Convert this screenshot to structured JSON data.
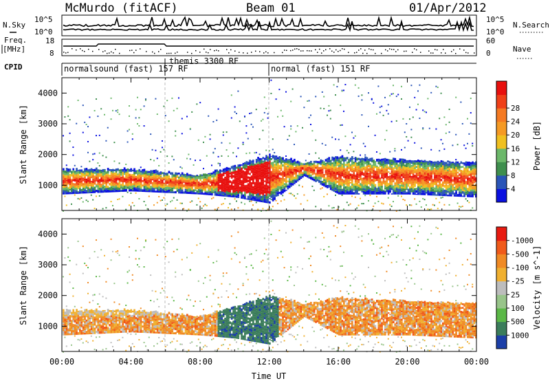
{
  "header": {
    "station": "McMurdo (fitACF)",
    "beam": "Beam 01",
    "date": "01/Apr/2012"
  },
  "noise_panel": {
    "left_label": "N.Sky",
    "right_label": "N.Search",
    "left_ticks": [
      "10^5",
      "10^0"
    ],
    "right_ticks": [
      "10^5",
      "10^0"
    ]
  },
  "freq_panel": {
    "left_label_1": "Freq.",
    "left_label_2": "[MHz]",
    "left_ticks": [
      "18",
      "8"
    ],
    "right_label": "Nave",
    "right_ticks": [
      "60",
      "0"
    ]
  },
  "cpid": {
    "label": "CPID",
    "modes": [
      {
        "name": "normalsound (fast) 157 RF",
        "start_hour": 0
      },
      {
        "name": "themis 3300 RF",
        "start_hour": 6
      },
      {
        "name": "normal (fast) 151 RF",
        "start_hour": 12
      }
    ]
  },
  "time_axis": {
    "label": "Time UT",
    "ticks": [
      "00:00",
      "04:00",
      "08:00",
      "12:00",
      "16:00",
      "20:00",
      "00:00"
    ]
  },
  "range_axis": {
    "label": "Slant Range [km]",
    "ticks": [
      "1000",
      "2000",
      "3000",
      "4000"
    ]
  },
  "power_scale": {
    "label": "Power [dB]",
    "ticks": [
      "4",
      "8",
      "12",
      "16",
      "20",
      "24",
      "28"
    ],
    "colors": [
      "#0a10e0",
      "#2a55b8",
      "#3f8f4e",
      "#6cb86a",
      "#f0c020",
      "#f59a24",
      "#f57a22",
      "#f04018",
      "#e8100e"
    ]
  },
  "velocity_scale": {
    "label": "Velocity [m s^-1]",
    "ticks": [
      "1000",
      "500",
      "100",
      "25",
      "-25",
      "-100",
      "-500",
      "-1000"
    ],
    "colors": [
      "#1c3fa8",
      "#3b7d5b",
      "#5bb847",
      "#98c48a",
      "#bdbdbd",
      "#f0b030",
      "#f08a24",
      "#f05a1a",
      "#e81a10"
    ]
  },
  "chart_data": [
    {
      "type": "heatmap",
      "title": "Power",
      "xlabel": "Time UT",
      "ylabel": "Slant Range [km]",
      "xlim": [
        0,
        24
      ],
      "ylim": [
        180,
        4500
      ],
      "colorbar": {
        "label": "Power [dB]",
        "range": [
          0,
          32
        ]
      },
      "description_series": [
        {
          "name": "echo band lower edge",
          "x": [
            0,
            4,
            8,
            10,
            12,
            14,
            16,
            20,
            24
          ],
          "y": [
            700,
            800,
            700,
            600,
            400,
            1300,
            700,
            700,
            600
          ]
        },
        {
          "name": "echo band upper edge",
          "x": [
            0,
            4,
            8,
            10,
            12,
            14,
            16,
            20,
            24
          ],
          "y": [
            1500,
            1500,
            1300,
            1600,
            2000,
            1700,
            1900,
            1800,
            1700
          ]
        }
      ]
    },
    {
      "type": "heatmap",
      "title": "Velocity",
      "xlabel": "Time UT",
      "ylabel": "Slant Range [km]",
      "xlim": [
        0,
        24
      ],
      "ylim": [
        180,
        4500
      ],
      "colorbar": {
        "label": "Velocity [m s^-1]",
        "range": [
          -1000,
          1000
        ]
      }
    }
  ]
}
